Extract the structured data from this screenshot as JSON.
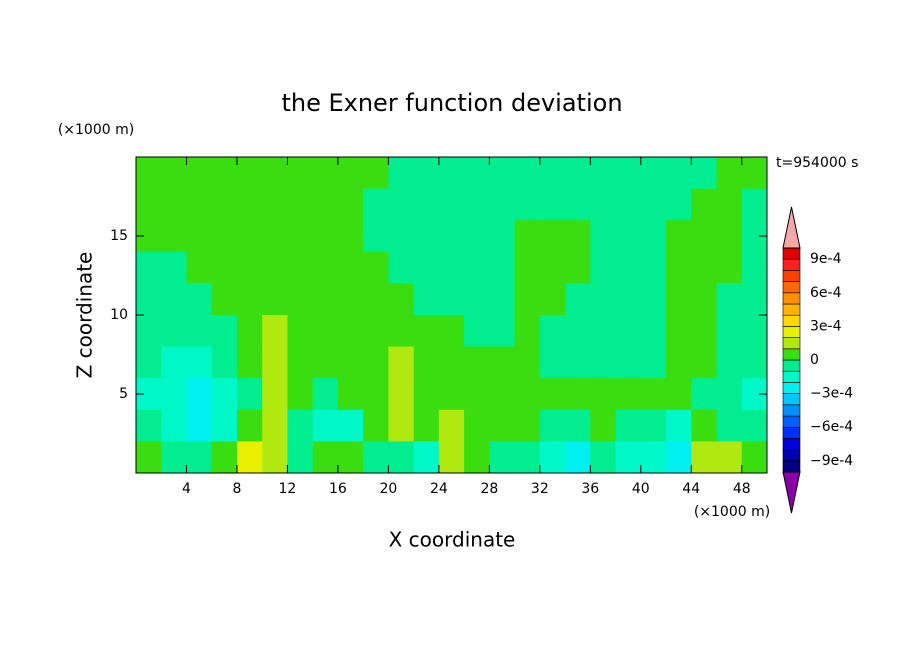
{
  "chart_data": {
    "type": "contour",
    "title": "the Exner function deviation",
    "xlabel": "X coordinate",
    "ylabel": "Z coordinate",
    "x_unit": "(×1000 m)",
    "y_unit": "(×1000 m)",
    "time_label": "t=954000 s",
    "xlim": [
      0,
      50
    ],
    "ylim": [
      0,
      20
    ],
    "xticks": [
      4,
      8,
      12,
      16,
      20,
      24,
      28,
      32,
      36,
      40,
      44,
      48
    ],
    "yticks": [
      5,
      10,
      15
    ],
    "x_edges": [
      0,
      2,
      4,
      6,
      8,
      10,
      12,
      14,
      16,
      18,
      20,
      22,
      24,
      26,
      28,
      30,
      32,
      34,
      36,
      38,
      40,
      42,
      44,
      46,
      48,
      50
    ],
    "y_edges": [
      20,
      18,
      16,
      14,
      12,
      10,
      8,
      6,
      4,
      2,
      0
    ],
    "z": [
      [
        5e-05,
        5e-05,
        5e-05,
        5e-05,
        5e-05,
        5e-05,
        5e-05,
        5e-05,
        5e-05,
        5e-05,
        -5e-05,
        -5e-05,
        -5e-05,
        -5e-05,
        -5e-05,
        -5e-05,
        -5e-05,
        -5e-05,
        -5e-05,
        -5e-05,
        -5e-05,
        -5e-05,
        -5e-05,
        5e-05,
        5e-05
      ],
      [
        5e-05,
        5e-05,
        5e-05,
        5e-05,
        5e-05,
        5e-05,
        5e-05,
        5e-05,
        5e-05,
        -5e-05,
        -5e-05,
        -5e-05,
        -5e-05,
        -5e-05,
        -5e-05,
        -5e-05,
        -5e-05,
        -5e-05,
        -5e-05,
        -5e-05,
        -5e-05,
        -5e-05,
        5e-05,
        5e-05,
        -5e-05
      ],
      [
        5e-05,
        5e-05,
        5e-05,
        5e-05,
        5e-05,
        5e-05,
        5e-05,
        5e-05,
        5e-05,
        -5e-05,
        -5e-05,
        -5e-05,
        -5e-05,
        -5e-05,
        -5e-05,
        5e-05,
        5e-05,
        5e-05,
        -5e-05,
        -5e-05,
        -5e-05,
        5e-05,
        5e-05,
        5e-05,
        -5e-05
      ],
      [
        -5e-05,
        -5e-05,
        5e-05,
        5e-05,
        5e-05,
        5e-05,
        5e-05,
        5e-05,
        5e-05,
        5e-05,
        -5e-05,
        -5e-05,
        -5e-05,
        -5e-05,
        -5e-05,
        5e-05,
        5e-05,
        5e-05,
        -5e-05,
        -5e-05,
        -5e-05,
        5e-05,
        5e-05,
        5e-05,
        -5e-05
      ],
      [
        -5e-05,
        -5e-05,
        -5e-05,
        5e-05,
        5e-05,
        5e-05,
        5e-05,
        5e-05,
        5e-05,
        5e-05,
        5e-05,
        -5e-05,
        -5e-05,
        -5e-05,
        -5e-05,
        5e-05,
        5e-05,
        -5e-05,
        -5e-05,
        -5e-05,
        -5e-05,
        5e-05,
        5e-05,
        -5e-05,
        -5e-05
      ],
      [
        -5e-05,
        -5e-05,
        -5e-05,
        -5e-05,
        5e-05,
        0.00015,
        5e-05,
        5e-05,
        5e-05,
        5e-05,
        5e-05,
        5e-05,
        5e-05,
        -5e-05,
        -5e-05,
        5e-05,
        -5e-05,
        -5e-05,
        -5e-05,
        -5e-05,
        -5e-05,
        5e-05,
        5e-05,
        -5e-05,
        -5e-05
      ],
      [
        -5e-05,
        -0.00015,
        -0.00015,
        -5e-05,
        5e-05,
        0.00015,
        5e-05,
        5e-05,
        5e-05,
        5e-05,
        0.00015,
        5e-05,
        5e-05,
        5e-05,
        5e-05,
        5e-05,
        -5e-05,
        -5e-05,
        -5e-05,
        -5e-05,
        -5e-05,
        5e-05,
        5e-05,
        -5e-05,
        -5e-05
      ],
      [
        -0.00015,
        -0.00015,
        -0.00025,
        -0.00015,
        -5e-05,
        0.00015,
        5e-05,
        -5e-05,
        5e-05,
        5e-05,
        0.00015,
        5e-05,
        5e-05,
        5e-05,
        5e-05,
        5e-05,
        5e-05,
        5e-05,
        5e-05,
        5e-05,
        5e-05,
        5e-05,
        -5e-05,
        -5e-05,
        -0.00015
      ],
      [
        -5e-05,
        -0.00015,
        -0.00025,
        -0.00015,
        5e-05,
        0.00015,
        -5e-05,
        -0.00015,
        -0.00015,
        5e-05,
        0.00015,
        5e-05,
        0.00015,
        5e-05,
        5e-05,
        5e-05,
        -5e-05,
        -5e-05,
        5e-05,
        -5e-05,
        -5e-05,
        -0.00015,
        5e-05,
        -5e-05,
        -5e-05
      ],
      [
        5e-05,
        -5e-05,
        -5e-05,
        5e-05,
        0.00025,
        0.00015,
        -5e-05,
        5e-05,
        5e-05,
        -5e-05,
        -5e-05,
        -0.00015,
        0.00015,
        5e-05,
        -5e-05,
        -5e-05,
        -0.00015,
        -0.00025,
        -5e-05,
        -0.00015,
        -0.00015,
        -0.00025,
        0.00015,
        0.00015,
        5e-05
      ]
    ],
    "colorbar": {
      "levels": [
        -0.001,
        -0.0009,
        -0.0008,
        -0.0007,
        -0.0006,
        -0.0005,
        -0.0004,
        -0.0003,
        -0.0002,
        -0.0001,
        0,
        0.0001,
        0.0002,
        0.0003,
        0.0004,
        0.0005,
        0.0006,
        0.0007,
        0.0008,
        0.0009,
        0.001
      ],
      "colors": [
        "#000080",
        "#0000b0",
        "#0000e0",
        "#0030ff",
        "#0060ff",
        "#0090ff",
        "#00c8ff",
        "#00f0f0",
        "#00f8c8",
        "#00ee90",
        "#3ade10",
        "#b0e810",
        "#e8f000",
        "#ffd800",
        "#ffb400",
        "#ff9000",
        "#ff6a00",
        "#ff4000",
        "#ff2020",
        "#e00000"
      ],
      "under_color": "#8a00aa",
      "over_color": "#f4a8a8",
      "ticks": [
        {
          "value": -0.0009,
          "label": "−9e-4"
        },
        {
          "value": -0.0006,
          "label": "−6e-4"
        },
        {
          "value": -0.0003,
          "label": "−3e-4"
        },
        0,
        {
          "value": 0.0003,
          "label": "3e-4"
        },
        {
          "value": 0.0006,
          "label": "6e-4"
        },
        {
          "value": 0.0009,
          "label": "9e-4"
        }
      ]
    }
  }
}
